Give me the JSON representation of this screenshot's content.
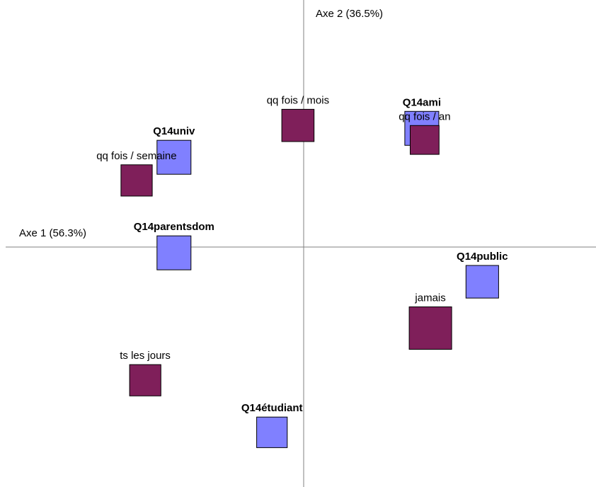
{
  "chart_data": {
    "type": "scatter",
    "title": "",
    "xlabel": "Axe 1 (56.3%)",
    "ylabel": "Axe 2 (36.5%)",
    "xlim": [
      -1.0,
      1.0
    ],
    "ylim": [
      -0.8,
      0.8
    ],
    "series": [
      {
        "name": "",
        "color": "#8080ff",
        "label_style": "bold",
        "points": [
          {
            "label": "Q14univ",
            "x": -0.45,
            "y": 0.31,
            "weight": 1.0
          },
          {
            "label": "Q14ami",
            "x": 0.41,
            "y": 0.41,
            "weight": 1.0
          },
          {
            "label": "Q14parentsdom",
            "x": -0.45,
            "y": -0.02,
            "weight": 1.0
          },
          {
            "label": "Q14public",
            "x": 0.62,
            "y": -0.12,
            "weight": 0.96
          },
          {
            "label": "Q14étudiant",
            "x": -0.11,
            "y": -0.64,
            "weight": 0.9
          }
        ]
      },
      {
        "name": "",
        "color": "#7f1f5a",
        "label_style": "normal",
        "points": [
          {
            "label": "qq fois / mois",
            "x": -0.02,
            "y": 0.42,
            "weight": 0.95
          },
          {
            "label": "qq fois / an",
            "x": 0.42,
            "y": 0.37,
            "weight": 0.85
          },
          {
            "label": "qq fois / semaine",
            "x": -0.58,
            "y": 0.23,
            "weight": 0.92
          },
          {
            "label": "jamais",
            "x": 0.44,
            "y": -0.28,
            "weight": 1.25
          },
          {
            "label": "ts les jours",
            "x": -0.55,
            "y": -0.46,
            "weight": 0.92
          }
        ]
      }
    ]
  }
}
